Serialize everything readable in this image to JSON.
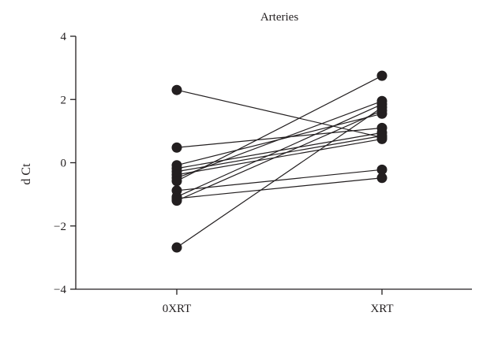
{
  "chart_data": {
    "type": "line",
    "title": "Arteries",
    "xlabel": "",
    "ylabel": "d Ct",
    "categories": [
      "0XRT",
      "XRT"
    ],
    "ylim": [
      -4,
      4
    ],
    "yticks": [
      -4,
      -2,
      0,
      2,
      4
    ],
    "ytick_labels": [
      "−4",
      "−2",
      "0",
      "2",
      "4"
    ],
    "grid": false,
    "legend": "none",
    "colors": {
      "marks": "#231f20"
    },
    "pairs": [
      {
        "values": [
          2.3,
          0.8
        ]
      },
      {
        "values": [
          0.48,
          1.1
        ]
      },
      {
        "values": [
          -0.08,
          1.55
        ]
      },
      {
        "values": [
          -0.18,
          0.95
        ]
      },
      {
        "values": [
          -0.28,
          0.85
        ]
      },
      {
        "values": [
          -0.38,
          0.75
        ]
      },
      {
        "values": [
          -0.48,
          1.95
        ]
      },
      {
        "values": [
          -0.58,
          2.75
        ]
      },
      {
        "values": [
          -0.88,
          -0.22
        ]
      },
      {
        "values": [
          -1.08,
          1.85
        ]
      },
      {
        "values": [
          -1.13,
          -0.48
        ]
      },
      {
        "values": [
          -1.2,
          1.65
        ]
      },
      {
        "values": [
          -2.68,
          1.75
        ]
      }
    ]
  }
}
